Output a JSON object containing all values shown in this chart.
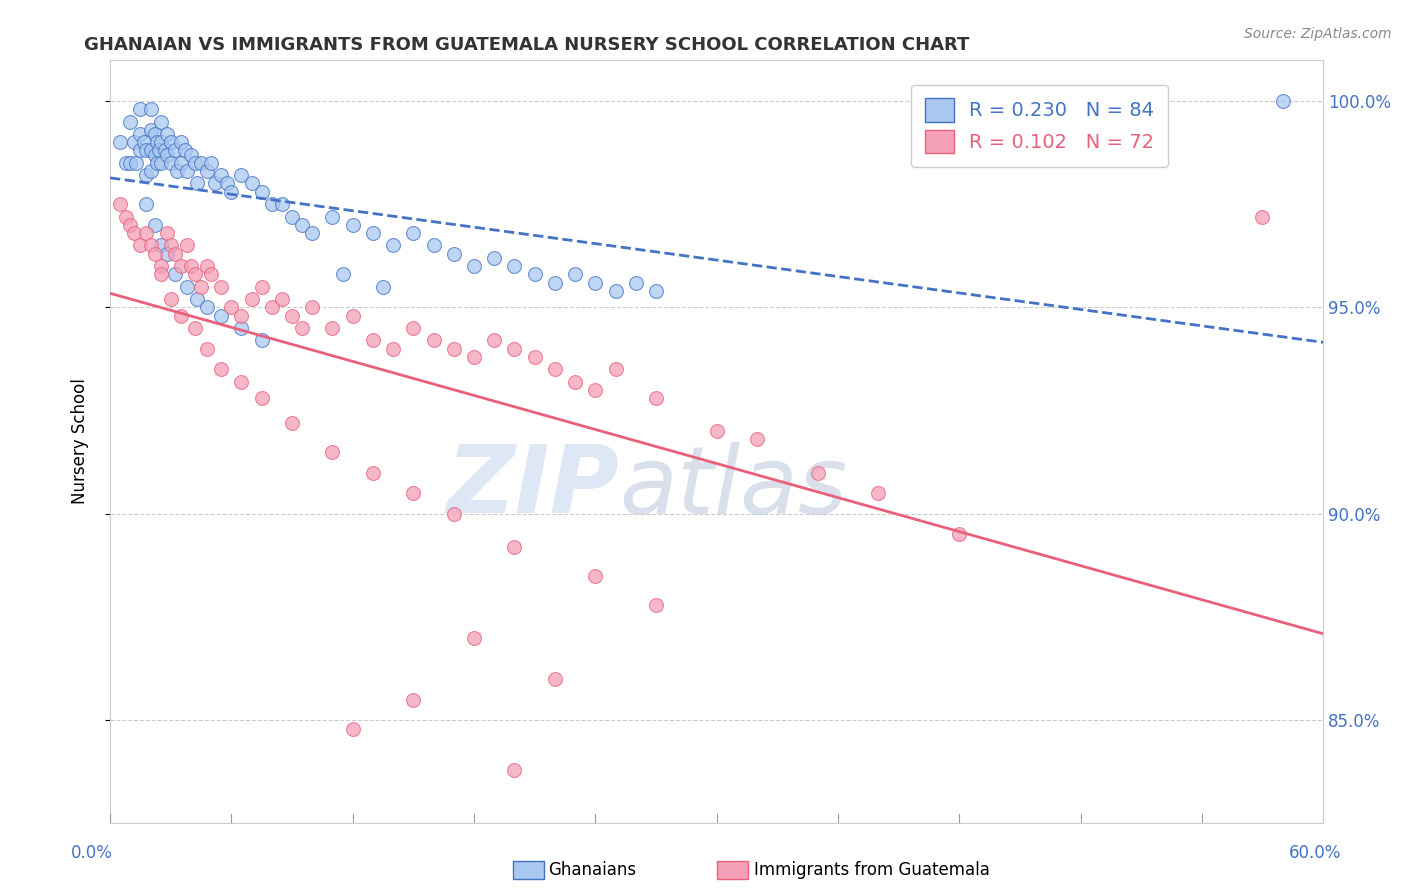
{
  "title": "GHANAIAN VS IMMIGRANTS FROM GUATEMALA NURSERY SCHOOL CORRELATION CHART",
  "source": "Source: ZipAtlas.com",
  "ylabel": "Nursery School",
  "ytick_labels": [
    "85.0%",
    "90.0%",
    "95.0%",
    "100.0%"
  ],
  "ytick_values": [
    0.85,
    0.9,
    0.95,
    1.0
  ],
  "xlim": [
    0.0,
    0.6
  ],
  "ylim": [
    0.825,
    1.01
  ],
  "legend_r1": "R = 0.230",
  "legend_n1": "N = 84",
  "legend_r2": "R = 0.102",
  "legend_n2": "N = 72",
  "blue_color": "#A8C8F0",
  "pink_color": "#F4A0B8",
  "blue_line_color": "#4472C4",
  "pink_line_color": "#E8607A",
  "watermark_zip": "ZIP",
  "watermark_atlas": "atlas",
  "blue_x": [
    0.005,
    0.008,
    0.01,
    0.01,
    0.012,
    0.013,
    0.015,
    0.015,
    0.015,
    0.017,
    0.018,
    0.018,
    0.02,
    0.02,
    0.02,
    0.02,
    0.022,
    0.022,
    0.023,
    0.023,
    0.024,
    0.025,
    0.025,
    0.025,
    0.027,
    0.028,
    0.028,
    0.03,
    0.03,
    0.032,
    0.033,
    0.035,
    0.035,
    0.037,
    0.038,
    0.04,
    0.042,
    0.043,
    0.045,
    0.048,
    0.05,
    0.052,
    0.055,
    0.058,
    0.06,
    0.065,
    0.07,
    0.075,
    0.08,
    0.085,
    0.09,
    0.095,
    0.1,
    0.11,
    0.12,
    0.13,
    0.14,
    0.15,
    0.16,
    0.17,
    0.18,
    0.19,
    0.2,
    0.21,
    0.22,
    0.23,
    0.24,
    0.25,
    0.26,
    0.27,
    0.018,
    0.022,
    0.025,
    0.028,
    0.032,
    0.038,
    0.043,
    0.048,
    0.055,
    0.065,
    0.075,
    0.58,
    0.115,
    0.135
  ],
  "blue_y": [
    0.99,
    0.985,
    0.995,
    0.985,
    0.99,
    0.985,
    0.998,
    0.992,
    0.988,
    0.99,
    0.988,
    0.982,
    0.998,
    0.993,
    0.988,
    0.983,
    0.992,
    0.987,
    0.99,
    0.985,
    0.988,
    0.995,
    0.99,
    0.985,
    0.988,
    0.992,
    0.987,
    0.99,
    0.985,
    0.988,
    0.983,
    0.99,
    0.985,
    0.988,
    0.983,
    0.987,
    0.985,
    0.98,
    0.985,
    0.983,
    0.985,
    0.98,
    0.982,
    0.98,
    0.978,
    0.982,
    0.98,
    0.978,
    0.975,
    0.975,
    0.972,
    0.97,
    0.968,
    0.972,
    0.97,
    0.968,
    0.965,
    0.968,
    0.965,
    0.963,
    0.96,
    0.962,
    0.96,
    0.958,
    0.956,
    0.958,
    0.956,
    0.954,
    0.956,
    0.954,
    0.975,
    0.97,
    0.965,
    0.963,
    0.958,
    0.955,
    0.952,
    0.95,
    0.948,
    0.945,
    0.942,
    1.0,
    0.958,
    0.955
  ],
  "pink_x": [
    0.005,
    0.008,
    0.01,
    0.012,
    0.015,
    0.018,
    0.02,
    0.022,
    0.025,
    0.028,
    0.03,
    0.032,
    0.035,
    0.038,
    0.04,
    0.042,
    0.045,
    0.048,
    0.05,
    0.055,
    0.06,
    0.065,
    0.07,
    0.075,
    0.08,
    0.085,
    0.09,
    0.095,
    0.1,
    0.11,
    0.12,
    0.13,
    0.14,
    0.15,
    0.16,
    0.17,
    0.18,
    0.19,
    0.2,
    0.21,
    0.22,
    0.23,
    0.24,
    0.25,
    0.27,
    0.3,
    0.32,
    0.35,
    0.38,
    0.42,
    0.025,
    0.03,
    0.035,
    0.042,
    0.048,
    0.055,
    0.065,
    0.075,
    0.09,
    0.11,
    0.13,
    0.15,
    0.17,
    0.2,
    0.24,
    0.27,
    0.18,
    0.22,
    0.15,
    0.12,
    0.2,
    0.57
  ],
  "pink_y": [
    0.975,
    0.972,
    0.97,
    0.968,
    0.965,
    0.968,
    0.965,
    0.963,
    0.96,
    0.968,
    0.965,
    0.963,
    0.96,
    0.965,
    0.96,
    0.958,
    0.955,
    0.96,
    0.958,
    0.955,
    0.95,
    0.948,
    0.952,
    0.955,
    0.95,
    0.952,
    0.948,
    0.945,
    0.95,
    0.945,
    0.948,
    0.942,
    0.94,
    0.945,
    0.942,
    0.94,
    0.938,
    0.942,
    0.94,
    0.938,
    0.935,
    0.932,
    0.93,
    0.935,
    0.928,
    0.92,
    0.918,
    0.91,
    0.905,
    0.895,
    0.958,
    0.952,
    0.948,
    0.945,
    0.94,
    0.935,
    0.932,
    0.928,
    0.922,
    0.915,
    0.91,
    0.905,
    0.9,
    0.892,
    0.885,
    0.878,
    0.87,
    0.86,
    0.855,
    0.848,
    0.838,
    0.972
  ]
}
